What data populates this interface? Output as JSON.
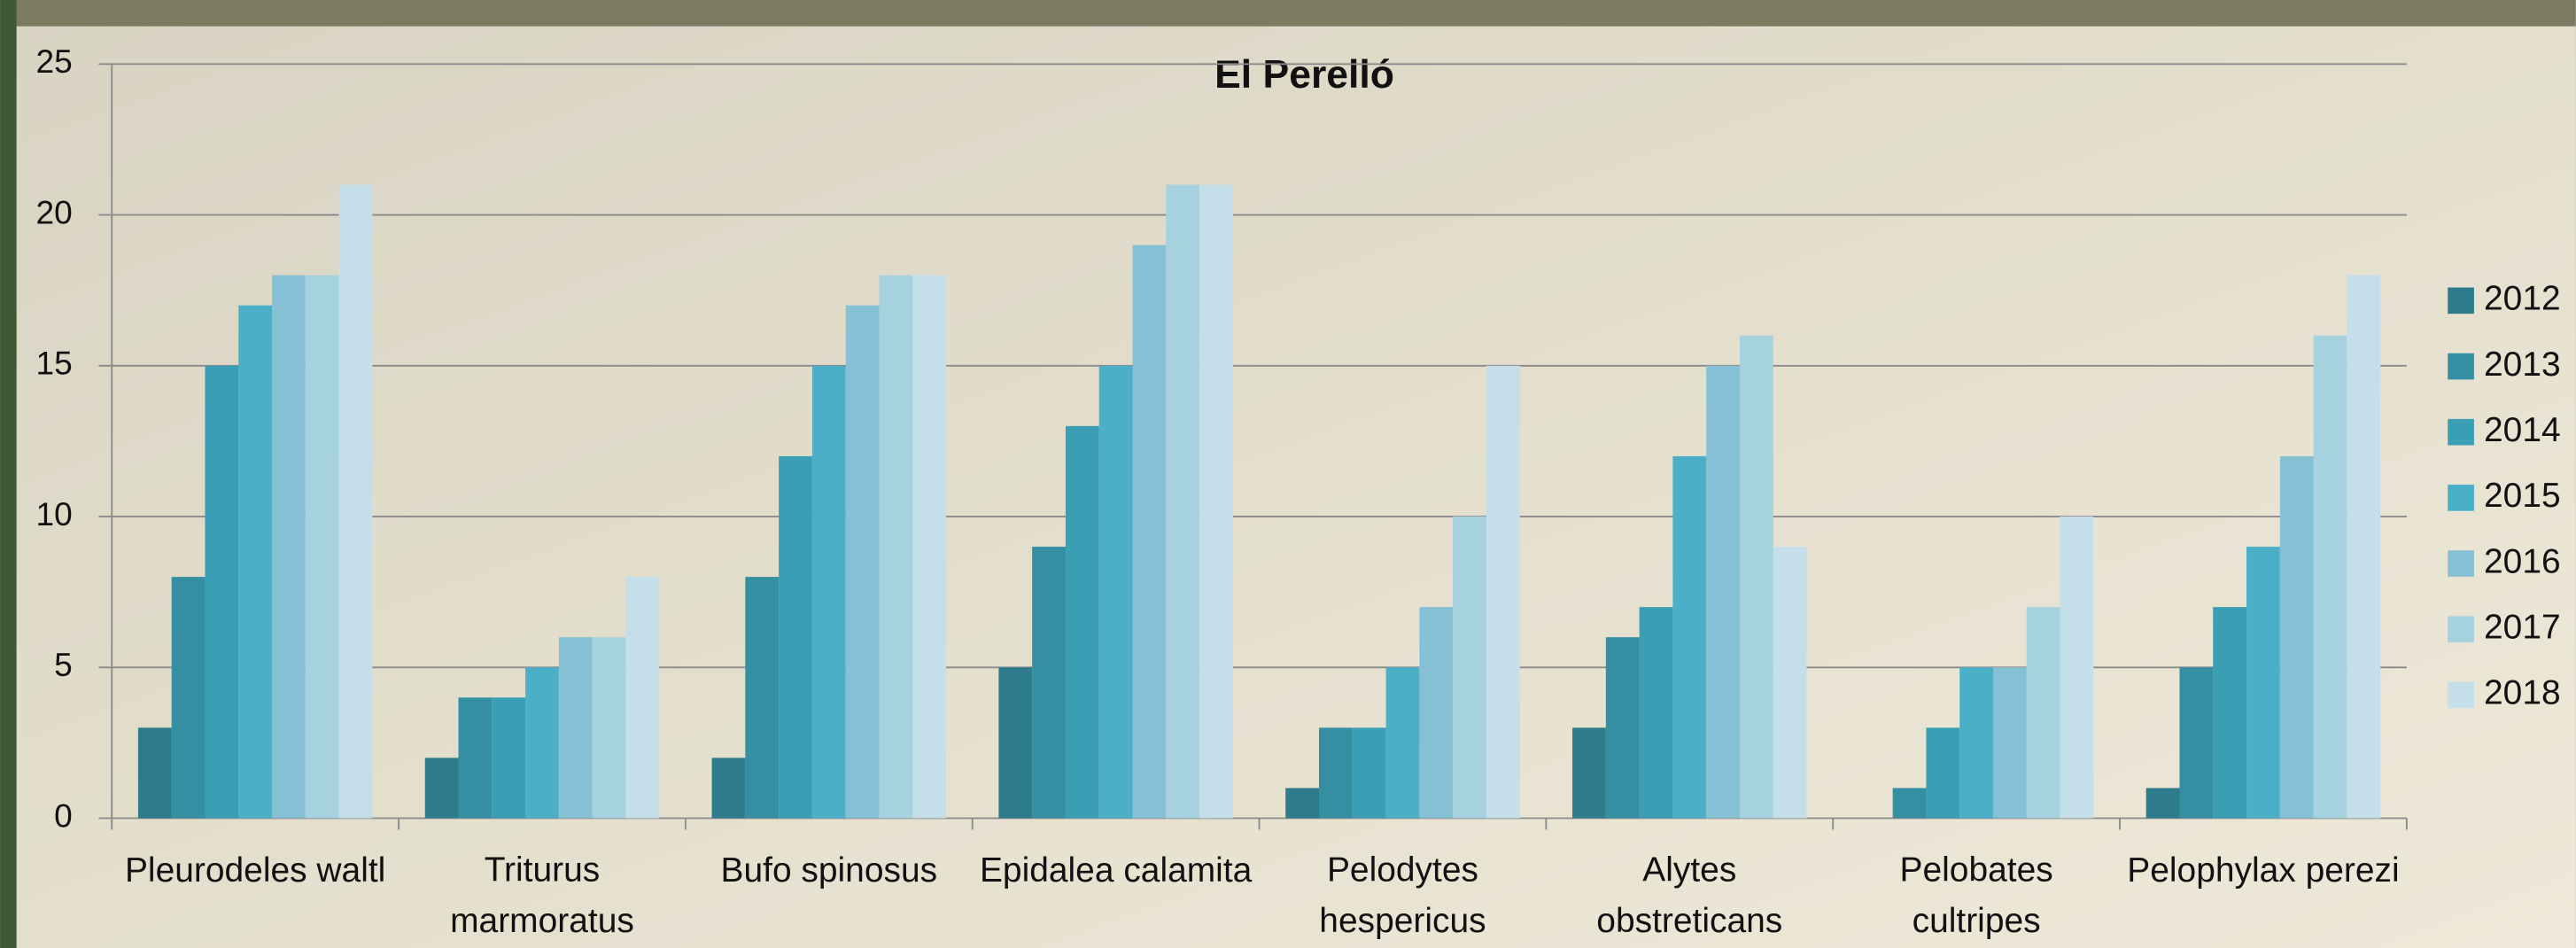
{
  "chart_data": {
    "type": "bar",
    "title": "El Perelló",
    "categories": [
      "Pleurodeles waltl",
      "Triturus marmoratus",
      "Bufo spinosus",
      "Epidalea calamita",
      "Pelodytes hespericus",
      "Alytes obstreticans",
      "Pelobates cultripes",
      "Pelophylax perezi"
    ],
    "series": [
      {
        "name": "2012",
        "color": "#2e7b8c",
        "values": [
          3,
          2,
          2,
          5,
          1,
          3,
          0,
          1
        ]
      },
      {
        "name": "2013",
        "color": "#358fa3",
        "values": [
          8,
          4,
          8,
          9,
          3,
          6,
          1,
          5
        ]
      },
      {
        "name": "2014",
        "color": "#3a9fb4",
        "values": [
          15,
          4,
          12,
          13,
          3,
          7,
          3,
          7
        ]
      },
      {
        "name": "2015",
        "color": "#4bafc8",
        "values": [
          17,
          5,
          15,
          15,
          5,
          12,
          5,
          9
        ]
      },
      {
        "name": "2016",
        "color": "#86c0d4",
        "values": [
          18,
          6,
          17,
          19,
          7,
          15,
          5,
          12
        ]
      },
      {
        "name": "2017",
        "color": "#a6d2e0",
        "values": [
          18,
          6,
          18,
          21,
          10,
          16,
          7,
          16
        ]
      },
      {
        "name": "2018",
        "color": "#c5dfea",
        "values": [
          21,
          8,
          18,
          21,
          15,
          9,
          10,
          18
        ]
      }
    ],
    "ylim": [
      0,
      25
    ],
    "yticks": [
      0,
      5,
      10,
      15,
      20,
      25
    ],
    "grid": true,
    "legend": "right"
  }
}
